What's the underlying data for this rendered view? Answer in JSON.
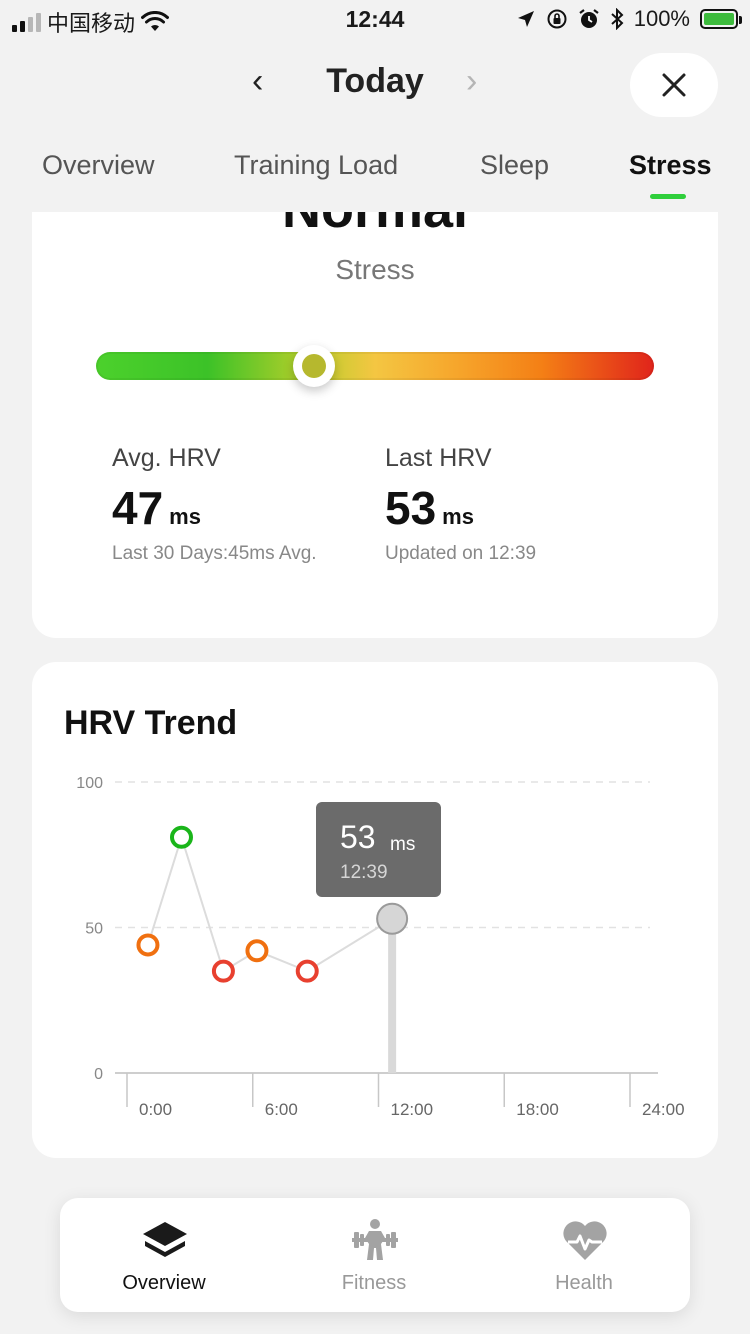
{
  "status_bar": {
    "carrier": "中国移动",
    "time": "12:44",
    "battery": "100%"
  },
  "header": {
    "title": "Today",
    "prev_icon": "chevron-left-icon",
    "next_icon": "chevron-right-icon",
    "close_icon": "close-icon"
  },
  "tabs": [
    {
      "label": "Overview",
      "active": false
    },
    {
      "label": "Training Load",
      "active": false
    },
    {
      "label": "Sleep",
      "active": false
    },
    {
      "label": "Stress",
      "active": true
    }
  ],
  "accent_color": "#2fcf3b",
  "stress": {
    "status": "Normal",
    "label": "Stress",
    "level_fraction": 0.39,
    "avg_hrv": {
      "title": "Avg. HRV",
      "value": "47",
      "unit": "ms",
      "sub": "Last 30 Days:45ms Avg."
    },
    "last_hrv": {
      "title": "Last HRV",
      "value": "53",
      "unit": "ms",
      "sub": "Updated on 12:39"
    }
  },
  "trend": {
    "title": "HRV Trend",
    "tooltip": {
      "value": "53",
      "unit": "ms",
      "time": "12:39"
    }
  },
  "chart_data": {
    "type": "line",
    "title": "HRV Trend",
    "xlabel": "",
    "ylabel": "",
    "x_ticks": [
      "0:00",
      "6:00",
      "12:00",
      "18:00",
      "24:00"
    ],
    "y_ticks": [
      0,
      50,
      100
    ],
    "xlim": [
      0,
      24
    ],
    "ylim": [
      0,
      100
    ],
    "grid": "horizontal dashed",
    "series": [
      {
        "points": [
          {
            "x": 1.0,
            "y": 44,
            "color": "#f07010"
          },
          {
            "x": 2.6,
            "y": 81,
            "color": "#1ab51a"
          },
          {
            "x": 4.6,
            "y": 35,
            "color": "#e8402f"
          },
          {
            "x": 6.2,
            "y": 42,
            "color": "#f07010"
          },
          {
            "x": 8.6,
            "y": 35,
            "color": "#e8402f"
          },
          {
            "x": 12.65,
            "y": 53,
            "color": "#d8d8d8",
            "selected": true
          }
        ]
      }
    ]
  },
  "bottom_nav": [
    {
      "label": "Overview",
      "icon": "layers-icon",
      "active": true
    },
    {
      "label": "Fitness",
      "icon": "weightlifter-icon",
      "active": false
    },
    {
      "label": "Health",
      "icon": "heart-pulse-icon",
      "active": false
    }
  ]
}
